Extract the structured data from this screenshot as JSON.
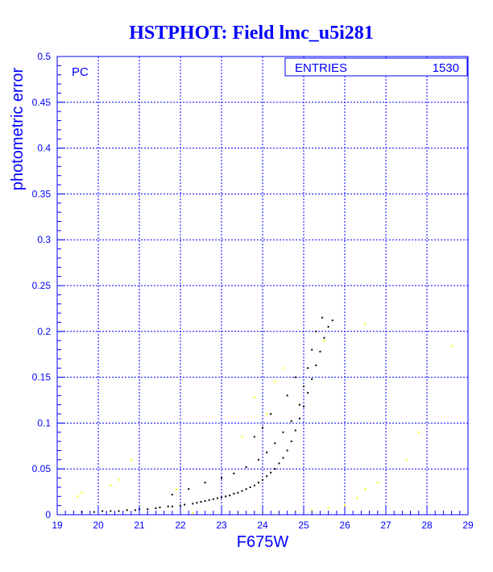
{
  "chart_data": {
    "type": "scatter",
    "title": "HSTPHOT: Field lmc_u5i281",
    "xlabel": "F675W",
    "ylabel": "photometric error",
    "xlim": [
      19,
      29
    ],
    "ylim": [
      0,
      0.5
    ],
    "x_ticks": [
      "19",
      "20",
      "21",
      "22",
      "23",
      "24",
      "25",
      "26",
      "27",
      "28",
      "29"
    ],
    "y_ticks": [
      "0",
      "0.05",
      "0.1",
      "0.15",
      "0.2",
      "0.25",
      "0.3",
      "0.35",
      "0.4",
      "0.45",
      "0.5"
    ],
    "grid": true,
    "panel_label": "PC",
    "stats_box": {
      "label": "ENTRIES",
      "value": "1530"
    },
    "colors": {
      "axes": "#0000ff",
      "main_series": "#000000",
      "secondary_series": "#ffff00"
    },
    "series": [
      {
        "color": "#000000",
        "points": [
          [
            19.6,
            0.003
          ],
          [
            19.9,
            0.003
          ],
          [
            20.1,
            0.004
          ],
          [
            20.3,
            0.004
          ],
          [
            20.5,
            0.004
          ],
          [
            20.7,
            0.005
          ],
          [
            20.9,
            0.005
          ],
          [
            21.0,
            0.006
          ],
          [
            21.2,
            0.006
          ],
          [
            21.4,
            0.007
          ],
          [
            21.5,
            0.008
          ],
          [
            21.7,
            0.009
          ],
          [
            21.8,
            0.009
          ],
          [
            22.0,
            0.01
          ],
          [
            22.1,
            0.011
          ],
          [
            22.3,
            0.012
          ],
          [
            22.4,
            0.013
          ],
          [
            22.5,
            0.014
          ],
          [
            22.6,
            0.015
          ],
          [
            22.7,
            0.016
          ],
          [
            22.8,
            0.017
          ],
          [
            22.9,
            0.018
          ],
          [
            23.0,
            0.019
          ],
          [
            23.1,
            0.02
          ],
          [
            23.2,
            0.021
          ],
          [
            23.3,
            0.023
          ],
          [
            23.4,
            0.024
          ],
          [
            23.5,
            0.026
          ],
          [
            23.6,
            0.028
          ],
          [
            23.7,
            0.03
          ],
          [
            23.8,
            0.032
          ],
          [
            23.9,
            0.035
          ],
          [
            24.0,
            0.038
          ],
          [
            24.1,
            0.042
          ],
          [
            24.2,
            0.046
          ],
          [
            24.3,
            0.05
          ],
          [
            24.4,
            0.056
          ],
          [
            24.5,
            0.062
          ],
          [
            24.6,
            0.07
          ],
          [
            24.7,
            0.08
          ],
          [
            24.8,
            0.092
          ],
          [
            24.9,
            0.105
          ],
          [
            25.0,
            0.118
          ],
          [
            25.1,
            0.133
          ],
          [
            25.2,
            0.148
          ],
          [
            25.3,
            0.163
          ],
          [
            25.4,
            0.178
          ],
          [
            25.5,
            0.193
          ],
          [
            25.6,
            0.205
          ],
          [
            25.7,
            0.212
          ],
          [
            22.6,
            0.035
          ],
          [
            23.0,
            0.04
          ],
          [
            23.3,
            0.045
          ],
          [
            23.6,
            0.052
          ],
          [
            23.9,
            0.06
          ],
          [
            24.1,
            0.068
          ],
          [
            24.3,
            0.078
          ],
          [
            24.5,
            0.09
          ],
          [
            24.7,
            0.102
          ],
          [
            24.9,
            0.12
          ],
          [
            25.0,
            0.14
          ],
          [
            25.1,
            0.16
          ],
          [
            25.2,
            0.18
          ],
          [
            25.3,
            0.2
          ],
          [
            25.45,
            0.215
          ],
          [
            21.8,
            0.022
          ],
          [
            22.2,
            0.028
          ],
          [
            23.8,
            0.085
          ],
          [
            24.0,
            0.095
          ],
          [
            24.2,
            0.11
          ],
          [
            24.6,
            0.13
          ],
          [
            24.8,
            0.15
          ]
        ]
      },
      {
        "color": "#ffff00",
        "points": [
          [
            19.5,
            0.02
          ],
          [
            19.6,
            0.024
          ],
          [
            20.3,
            0.032
          ],
          [
            20.5,
            0.038
          ],
          [
            20.8,
            0.06
          ],
          [
            21.9,
            0.028
          ],
          [
            22.3,
            0.002
          ],
          [
            23.4,
            0.002
          ],
          [
            24.0,
            0.002
          ],
          [
            24.4,
            0.003
          ],
          [
            24.8,
            0.004
          ],
          [
            25.2,
            0.005
          ],
          [
            25.6,
            0.007
          ],
          [
            26.0,
            0.01
          ],
          [
            26.3,
            0.018
          ],
          [
            26.5,
            0.028
          ],
          [
            26.8,
            0.035
          ],
          [
            27.5,
            0.06
          ],
          [
            27.8,
            0.09
          ],
          [
            26.5,
            0.208
          ],
          [
            28.6,
            0.184
          ],
          [
            24.5,
            0.16
          ],
          [
            24.3,
            0.145
          ],
          [
            23.8,
            0.128
          ],
          [
            24.1,
            0.11
          ],
          [
            23.5,
            0.085
          ],
          [
            25.5,
            0.19
          ]
        ]
      }
    ]
  }
}
